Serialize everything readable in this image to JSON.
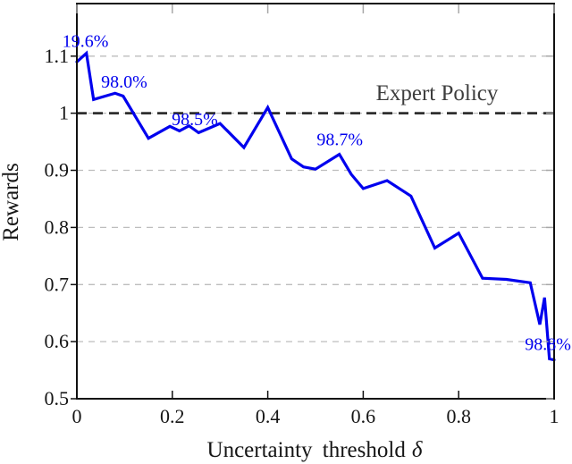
{
  "figure": {
    "background": "#ffffff"
  },
  "chart_data": {
    "type": "line",
    "title": "",
    "xlabel": "Uncertainty threshold δ",
    "xlabel_parts": [
      "Uncertainty threshold",
      "δ"
    ],
    "ylabel": "Rewards",
    "xlim": [
      0,
      1
    ],
    "ylim": [
      0.5,
      1.192
    ],
    "x_ticks": {
      "values": [
        0,
        0.2,
        0.4,
        0.6,
        0.8,
        1
      ],
      "labels": [
        "0",
        "0.2",
        "0.4",
        "0.6",
        "0.8",
        "1"
      ]
    },
    "y_ticks": {
      "values": [
        0.5,
        0.6,
        0.7,
        0.8,
        0.9,
        1,
        1.1
      ],
      "labels": [
        "0.5",
        "0.6",
        "0.7",
        "0.8",
        "0.9",
        "1",
        "1.1"
      ]
    },
    "grid": "horizontal dashed",
    "legend": "none",
    "colors": {
      "grid": "#bdbdbd",
      "axis": "#111111",
      "minor_tick": "#a8a8a8"
    },
    "series": [
      {
        "name": "rewards",
        "color": "#0000ee",
        "points": [
          [
            0,
            1.09
          ],
          [
            0.02,
            1.105
          ],
          [
            0.035,
            1.024
          ],
          [
            0.08,
            1.035
          ],
          [
            0.097,
            1.03
          ],
          [
            0.15,
            0.956
          ],
          [
            0.195,
            0.977
          ],
          [
            0.215,
            0.969
          ],
          [
            0.235,
            0.978
          ],
          [
            0.255,
            0.966
          ],
          [
            0.3,
            0.982
          ],
          [
            0.35,
            0.94
          ],
          [
            0.4,
            1.01
          ],
          [
            0.45,
            0.92
          ],
          [
            0.475,
            0.906
          ],
          [
            0.5,
            0.902
          ],
          [
            0.55,
            0.928
          ],
          [
            0.575,
            0.893
          ],
          [
            0.6,
            0.868
          ],
          [
            0.65,
            0.882
          ],
          [
            0.7,
            0.855
          ],
          [
            0.75,
            0.764
          ],
          [
            0.8,
            0.79
          ],
          [
            0.85,
            0.711
          ],
          [
            0.9,
            0.709
          ],
          [
            0.95,
            0.703
          ],
          [
            0.97,
            0.63
          ],
          [
            0.98,
            0.677
          ],
          [
            0.99,
            0.57
          ],
          [
            1,
            0.568
          ]
        ]
      }
    ],
    "reference_line": {
      "label": "Expert Policy",
      "value": 1.0,
      "color": "#2e2e2e",
      "label_color": "#3d3d3d"
    },
    "annotation_color": "#0000ee",
    "annotations": [
      {
        "text": "19.6%",
        "x": 0.018,
        "y": 1.127
      },
      {
        "text": "98.0%",
        "x": 0.099,
        "y": 1.056
      },
      {
        "text": "98.5%",
        "x": 0.247,
        "y": 0.99
      },
      {
        "text": "98.7%",
        "x": 0.551,
        "y": 0.955
      },
      {
        "text": "98.8%",
        "x": 0.987,
        "y": 0.596
      }
    ]
  }
}
